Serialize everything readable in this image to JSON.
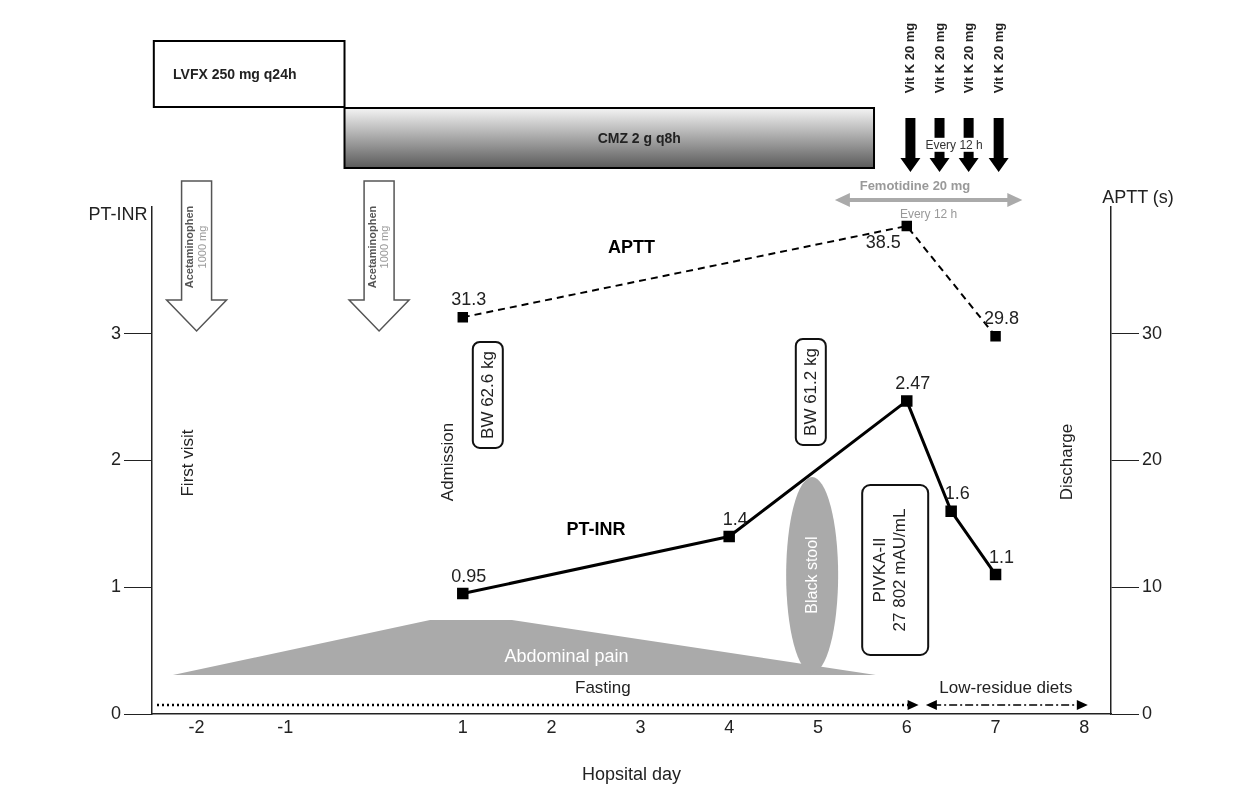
{
  "chart_data": {
    "type": "line",
    "xlabel": "Hopsital day",
    "ylabel": "PT-INR",
    "y2label": "APTT (s)",
    "xlim": [
      -2.5,
      8.3
    ],
    "xticks": [
      -2,
      -1,
      1,
      2,
      3,
      4,
      5,
      6,
      7,
      8
    ],
    "ylim": [
      0,
      4
    ],
    "yticks": [
      0,
      1,
      2,
      3
    ],
    "y2lim": [
      0,
      40
    ],
    "y2ticks": [
      0,
      10,
      20,
      30
    ],
    "series": [
      {
        "name": "PT-INR",
        "color": "#000000",
        "x": [
          1,
          4,
          6,
          6.5,
          7
        ],
        "values": [
          0.95,
          1.4,
          2.47,
          1.6,
          1.1
        ],
        "line_style": "solid"
      },
      {
        "name": "APTT",
        "color": "#000000",
        "axis": "y2",
        "x": [
          1,
          6,
          7
        ],
        "values": [
          31.3,
          38.5,
          29.8
        ],
        "line_style": "dashed"
      }
    ],
    "marker": "square",
    "data_labels": true,
    "grid": false,
    "legend": false,
    "annotations": [
      "LVFX 250 mg q24h",
      "CMZ 2 g q8h",
      "Vit K 20 mg",
      "Vit K 20 mg",
      "Vit K 20 mg",
      "Vit K 20 mg",
      "Every 12 h",
      "Femotidine 20 mg",
      "Every 12 h",
      "Acetaminophen",
      "1000 mg",
      "Acetaminophen",
      "1000 mg",
      "First visit",
      "Admission",
      "BW 62.6 kg",
      "BW 61.2 kg",
      "Black stool",
      "PIVKA-II",
      "27 802 mAU/mL",
      "Abdominal pain",
      "Fasting",
      "Low-residue diets",
      "Discharge"
    ]
  }
}
